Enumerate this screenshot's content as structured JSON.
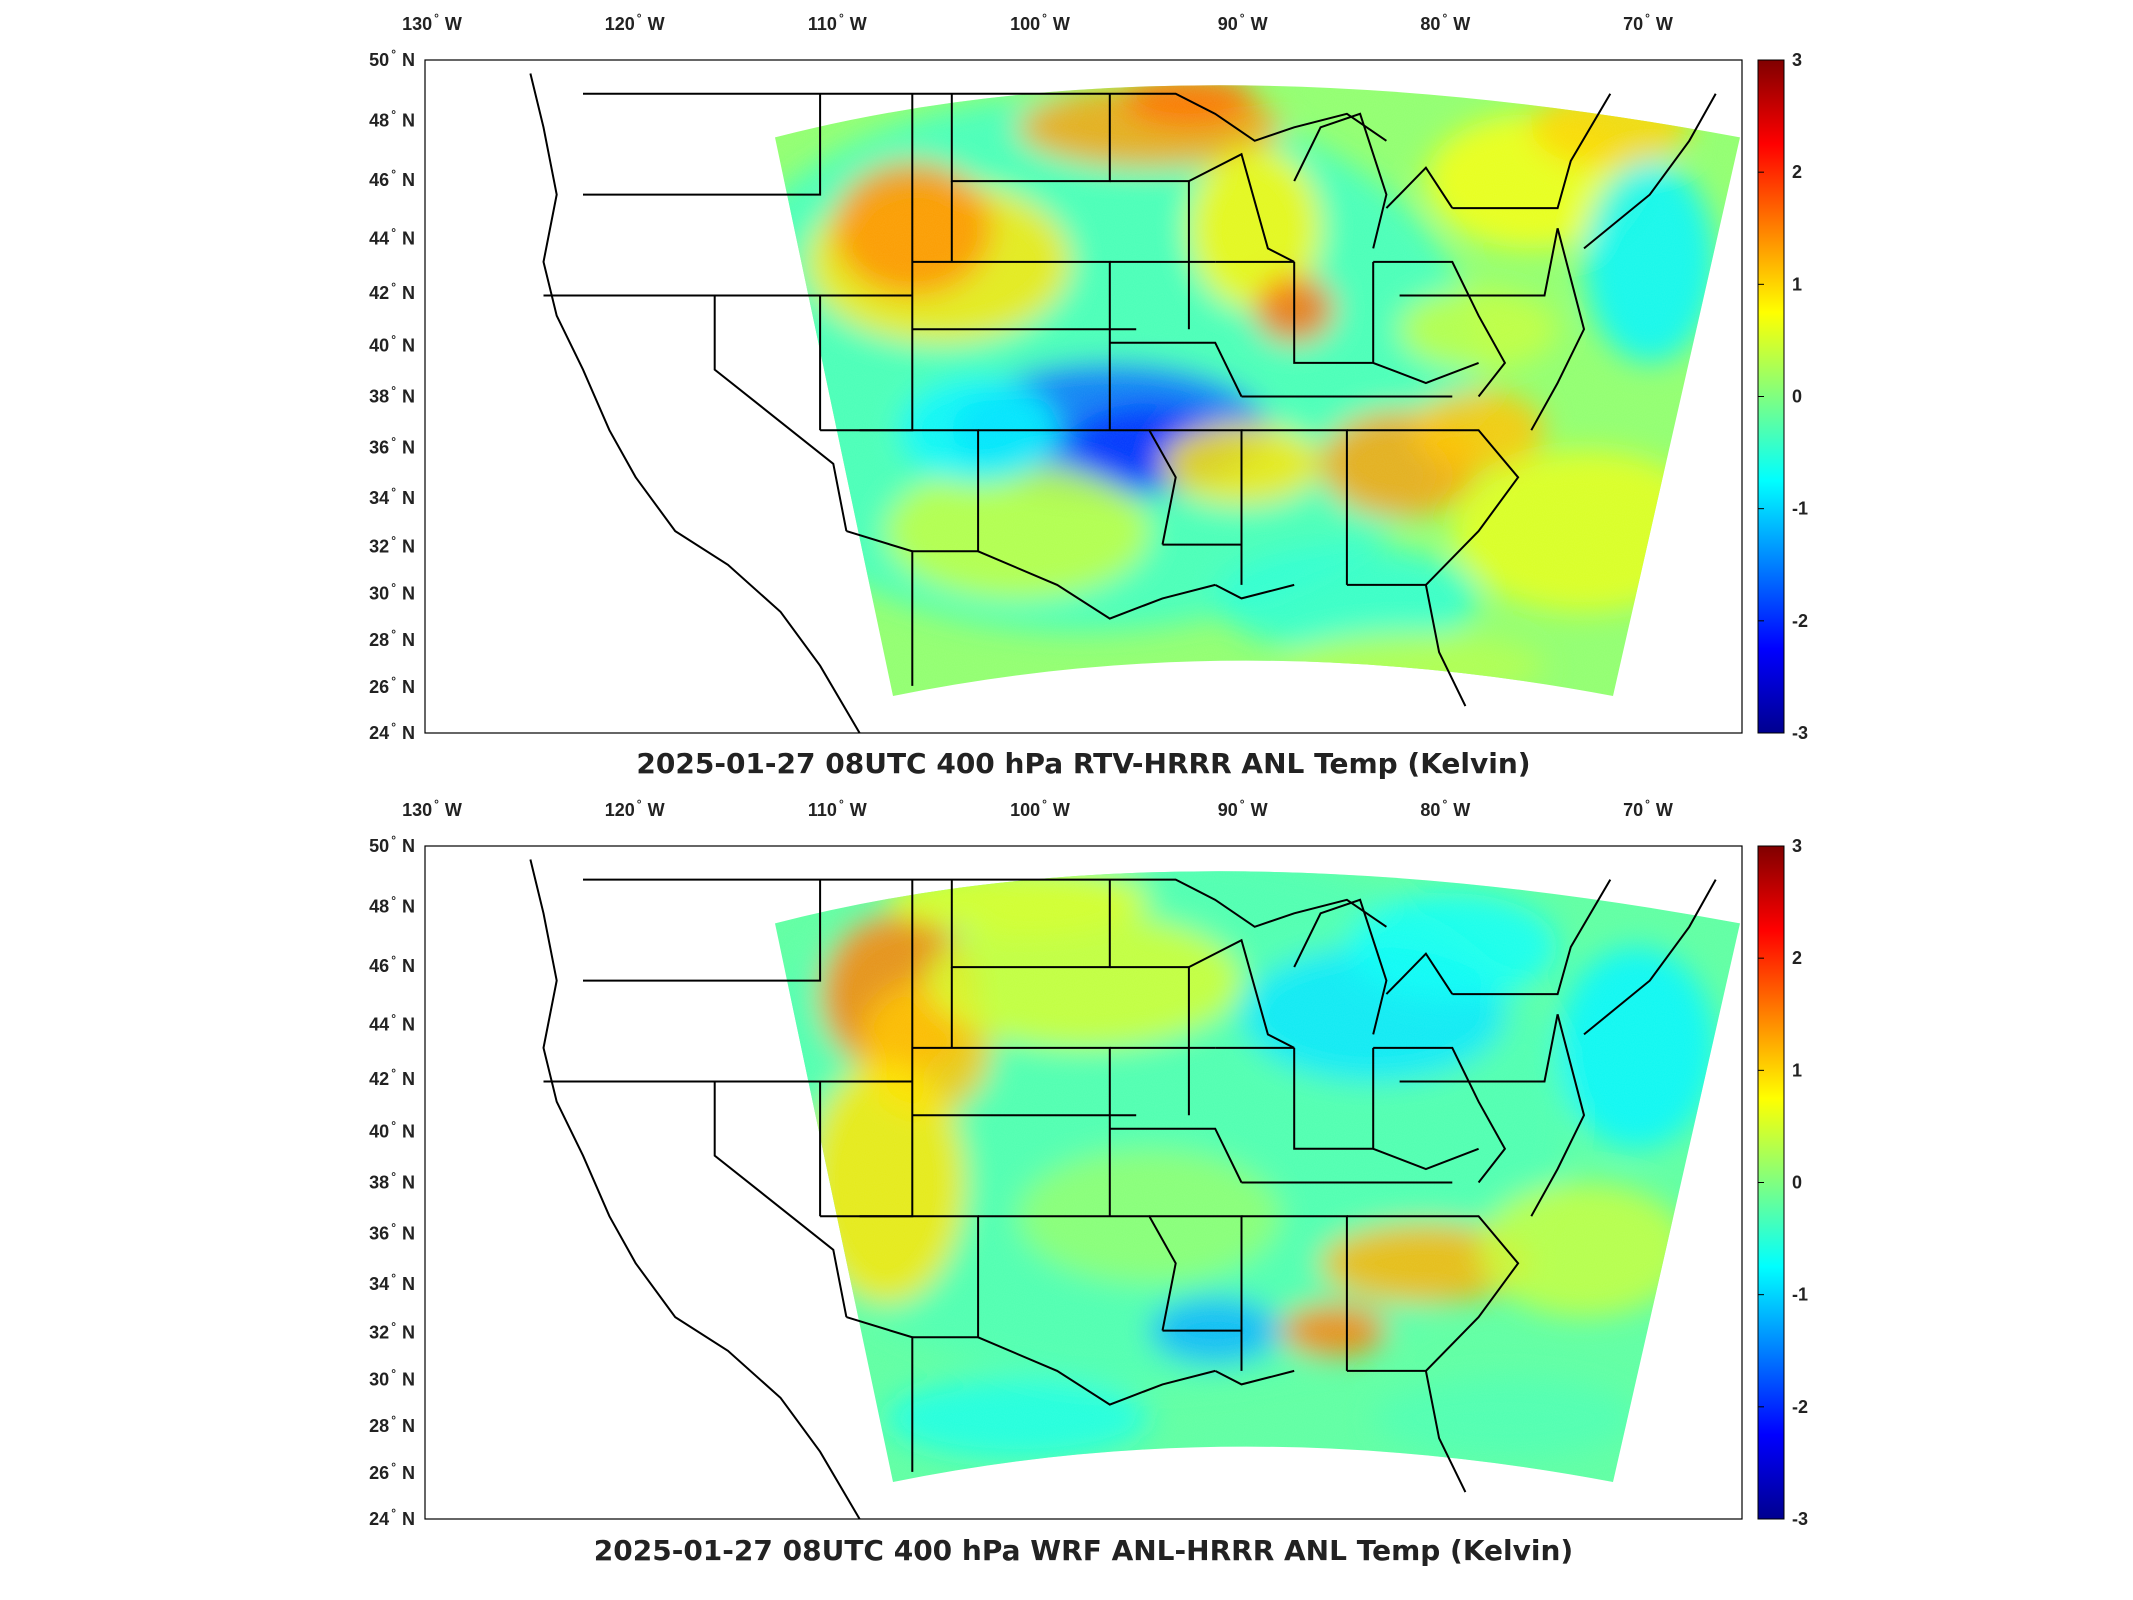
{
  "panels": [
    {
      "title": "2025-01-27 08UTC 400 hPa RTV-HRRR ANL Temp (Kelvin)",
      "variant": "rtv"
    },
    {
      "title": "2025-01-27 08UTC 400 hPa WRF ANL-HRRR ANL Temp (Kelvin)",
      "variant": "wrf"
    }
  ],
  "lon_ticks": [
    {
      "deg": "130",
      "hem": "W",
      "value": -130
    },
    {
      "deg": "120",
      "hem": "W",
      "value": -120
    },
    {
      "deg": "110",
      "hem": "W",
      "value": -110
    },
    {
      "deg": "100",
      "hem": "W",
      "value": -100
    },
    {
      "deg": "90",
      "hem": "W",
      "value": -90
    },
    {
      "deg": "80",
      "hem": "W",
      "value": -80
    },
    {
      "deg": "70",
      "hem": "W",
      "value": -70
    }
  ],
  "lat_ticks": [
    {
      "deg": "50",
      "hem": "N",
      "value": 50
    },
    {
      "deg": "48",
      "hem": "N",
      "value": 48
    },
    {
      "deg": "46",
      "hem": "N",
      "value": 46
    },
    {
      "deg": "44",
      "hem": "N",
      "value": 44
    },
    {
      "deg": "42",
      "hem": "N",
      "value": 42
    },
    {
      "deg": "40",
      "hem": "N",
      "value": 40
    },
    {
      "deg": "38",
      "hem": "N",
      "value": 38
    },
    {
      "deg": "36",
      "hem": "N",
      "value": 36
    },
    {
      "deg": "34",
      "hem": "N",
      "value": 34
    },
    {
      "deg": "32",
      "hem": "N",
      "value": 32
    },
    {
      "deg": "30",
      "hem": "N",
      "value": 30
    },
    {
      "deg": "28",
      "hem": "N",
      "value": 28
    },
    {
      "deg": "26",
      "hem": "N",
      "value": 26
    },
    {
      "deg": "24",
      "hem": "N",
      "value": 24
    }
  ],
  "colorbar": {
    "ticks": [
      "3",
      "2",
      "1",
      "0",
      "-1",
      "-2",
      "-3"
    ],
    "range": [
      -3,
      3
    ],
    "colormap": "jet",
    "colors": [
      "#00008f",
      "#0000ff",
      "#0080ff",
      "#00ffff",
      "#80ff80",
      "#ffff00",
      "#ff8000",
      "#ff0000",
      "#800000"
    ]
  },
  "colors": {
    "map_border": "#000000",
    "no_data": "#ffffff"
  }
}
